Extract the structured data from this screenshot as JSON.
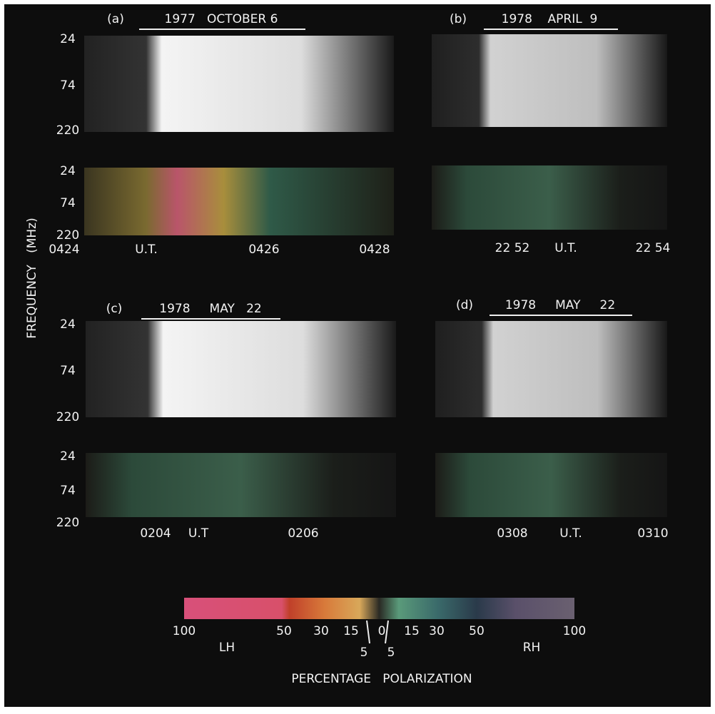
{
  "y_axis_title": "FREQUENCY   (MHz)",
  "panels": [
    {
      "label": "(a)",
      "date": "1977   OCTOBER 6",
      "frequency_labels": [
        "24",
        "74",
        "220",
        "24",
        "74",
        "220"
      ],
      "time_labels": [
        "0424",
        "U.T.",
        "0426",
        "0428"
      ]
    },
    {
      "label": "(b)",
      "date": "1978    APRIL  9",
      "frequency_labels": [],
      "time_labels": [
        "22 52",
        "U.T.",
        "22 54"
      ]
    },
    {
      "label": "(c)",
      "date": "1978     MAY   22",
      "frequency_labels": [
        "24",
        "74",
        "220",
        "24",
        "74",
        "220"
      ],
      "time_labels": [
        "0204",
        "U.T",
        "0206"
      ]
    },
    {
      "label": "(d)",
      "date": "1978     MAY     22",
      "frequency_labels": [],
      "time_labels": [
        "0308",
        "U.T.",
        "0310"
      ]
    }
  ],
  "colorbar": {
    "labels": [
      "100",
      "50",
      "30",
      "15",
      "0",
      "15",
      "30",
      "50",
      "100"
    ],
    "minor_labels": [
      "5",
      "5"
    ],
    "left_label": "LH",
    "right_label": "RH",
    "title": "PERCENTAGE   POLARIZATION"
  }
}
